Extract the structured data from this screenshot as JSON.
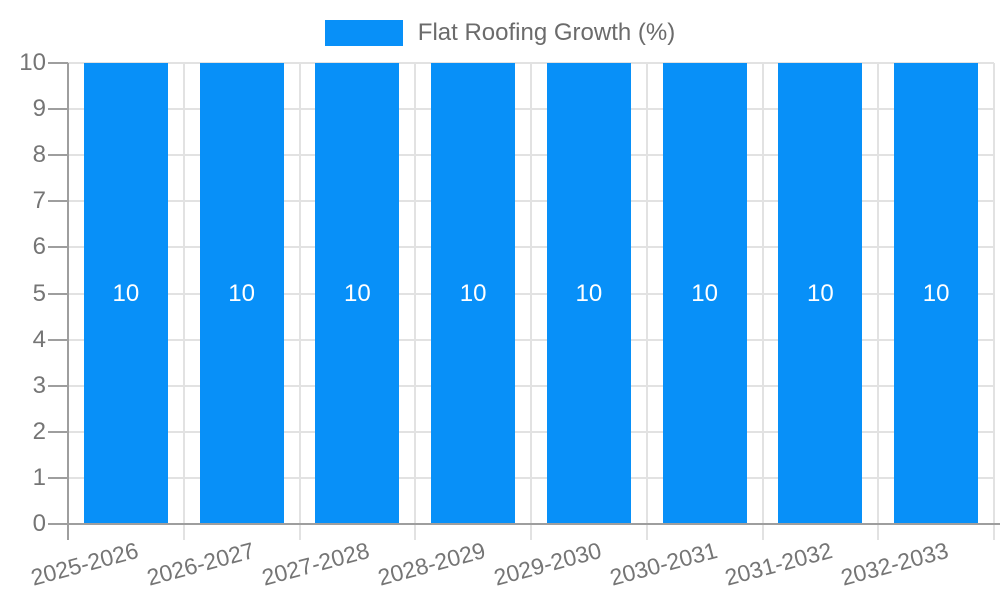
{
  "chart_data": {
    "type": "bar",
    "title": "Flat Roofing Growth (%)",
    "categories": [
      "2025-2026",
      "2026-2027",
      "2027-2028",
      "2028-2029",
      "2029-2030",
      "2030-2031",
      "2031-2032",
      "2032-2033"
    ],
    "series": [
      {
        "name": "Flat Roofing Growth (%)",
        "values": [
          10,
          10,
          10,
          10,
          10,
          10,
          10,
          10
        ]
      }
    ],
    "bar_value_labels": [
      "10",
      "10",
      "10",
      "10",
      "10",
      "10",
      "10",
      "10"
    ],
    "xlabel": "",
    "ylabel": "",
    "ylim": [
      0,
      10
    ],
    "yticks": [
      0,
      1,
      2,
      3,
      4,
      5,
      6,
      7,
      8,
      9,
      10
    ],
    "grid": true,
    "legend_position": "top",
    "colors": {
      "bar": "#0890F8",
      "bar_label": "#FFFFFF",
      "grid": "#E2E2E2",
      "axis": "#9E9E9E",
      "tick_label": "#757575",
      "legend_text": "#6B6B6B",
      "background": "#FFFFFF"
    }
  }
}
